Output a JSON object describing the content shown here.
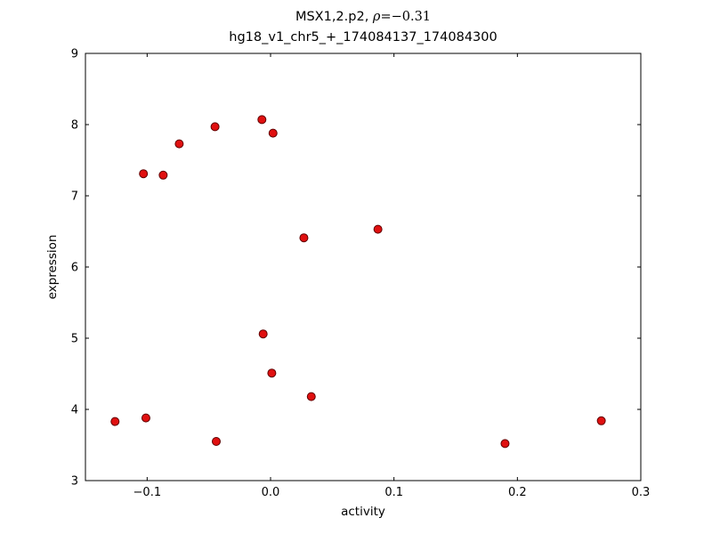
{
  "chart_data": {
    "type": "scatter",
    "title": "MSX1,2.p2, ρ=−0.31",
    "title_parts": {
      "prefix": "MSX1,2.p2, ",
      "rho_symbol": "ρ",
      "rho_value": "=−0.31"
    },
    "subtitle": "hg18_v1_chr5_+_174084137_174084300",
    "xlabel": "activity",
    "ylabel": "expression",
    "xlim": [
      -0.15,
      0.3
    ],
    "ylim": [
      3,
      9
    ],
    "xticks": [
      -0.1,
      0.0,
      0.1,
      0.2,
      0.3
    ],
    "xtick_labels": [
      "−0.1",
      "0.0",
      "0.1",
      "0.2",
      "0.3"
    ],
    "yticks": [
      3,
      4,
      5,
      6,
      7,
      8,
      9
    ],
    "ytick_labels": [
      "3",
      "4",
      "5",
      "6",
      "7",
      "8",
      "9"
    ],
    "grid": false,
    "legend": null,
    "marker": {
      "shape": "circle",
      "fill": "#e01010",
      "stroke": "#5f0000",
      "radius_px": 4.5
    },
    "frame_color": "#000000",
    "points": [
      {
        "x": -0.126,
        "y": 3.83
      },
      {
        "x": -0.101,
        "y": 3.88
      },
      {
        "x": -0.103,
        "y": 7.31
      },
      {
        "x": -0.087,
        "y": 7.29
      },
      {
        "x": -0.074,
        "y": 7.73
      },
      {
        "x": -0.045,
        "y": 7.97
      },
      {
        "x": -0.044,
        "y": 3.55
      },
      {
        "x": -0.007,
        "y": 8.07
      },
      {
        "x": -0.006,
        "y": 5.06
      },
      {
        "x": 0.002,
        "y": 7.88
      },
      {
        "x": 0.001,
        "y": 4.51
      },
      {
        "x": 0.027,
        "y": 6.41
      },
      {
        "x": 0.033,
        "y": 4.18
      },
      {
        "x": 0.087,
        "y": 6.53
      },
      {
        "x": 0.19,
        "y": 3.52
      },
      {
        "x": 0.268,
        "y": 3.84
      }
    ]
  }
}
